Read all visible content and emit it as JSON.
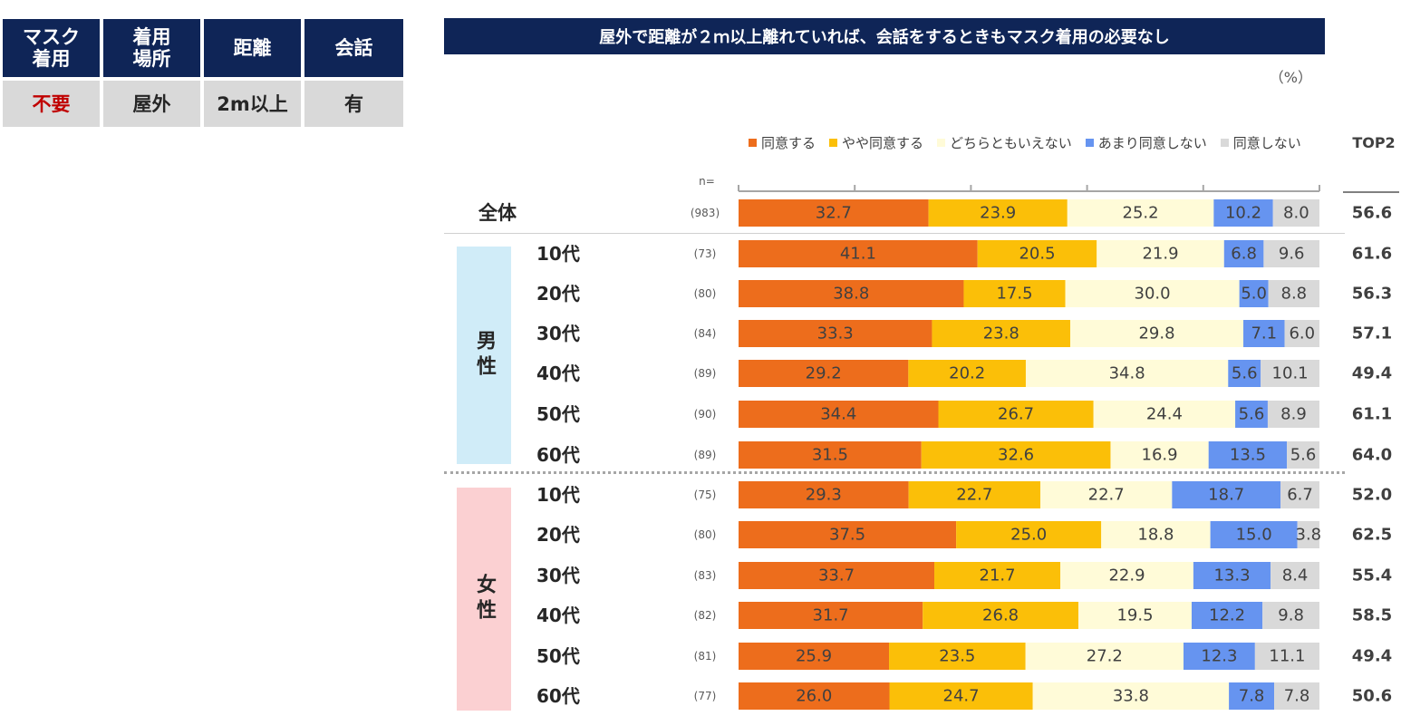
{
  "condition_table": {
    "headers": [
      "マスク\n着用",
      "着用\n場所",
      "距離",
      "会話"
    ],
    "values": [
      "不要",
      "屋外",
      "2m以上",
      "有"
    ]
  },
  "colors": {
    "navy": "#0f2557",
    "series": [
      "#ed6d1c",
      "#fbbf08",
      "#fffbd8",
      "#6694f0",
      "#d9d9d9"
    ]
  },
  "chart_data": {
    "type": "bar",
    "orientation": "horizontal-stacked-100",
    "title": "屋外で距離が２ｍ以上離れていれば、会話をするときもマスク着用の必要なし",
    "unit": "（%）",
    "n_label": "n=",
    "top2_label": "TOP2",
    "series": [
      {
        "name": "同意する",
        "values": [
          32.7,
          41.1,
          38.8,
          33.3,
          29.2,
          34.4,
          31.5,
          29.3,
          37.5,
          33.7,
          31.7,
          25.9,
          26.0
        ]
      },
      {
        "name": "やや同意する",
        "values": [
          23.9,
          20.5,
          17.5,
          23.8,
          20.2,
          26.7,
          32.6,
          22.7,
          25.0,
          21.7,
          26.8,
          23.5,
          24.7
        ]
      },
      {
        "name": "どちらともいえない",
        "values": [
          25.2,
          21.9,
          30.0,
          29.8,
          34.8,
          24.4,
          16.9,
          22.7,
          18.8,
          22.9,
          19.5,
          27.2,
          33.8
        ]
      },
      {
        "name": "あまり同意しない",
        "values": [
          10.2,
          6.8,
          5.0,
          7.1,
          5.6,
          5.6,
          13.5,
          18.7,
          15.0,
          13.3,
          12.2,
          12.3,
          7.8
        ]
      },
      {
        "name": "同意しない",
        "values": [
          8.0,
          9.6,
          8.8,
          6.0,
          10.1,
          8.9,
          5.6,
          6.7,
          3.8,
          8.4,
          9.8,
          11.1,
          7.8
        ]
      }
    ],
    "groups": [
      {
        "name": "男性",
        "rows": [
          1,
          2,
          3,
          4,
          5,
          6
        ]
      },
      {
        "name": "女性",
        "rows": [
          7,
          8,
          9,
          10,
          11,
          12
        ]
      }
    ],
    "rows": [
      {
        "label": "全体",
        "n": "(983)",
        "top2": "56.6"
      },
      {
        "label": "10代",
        "n": "(73)",
        "top2": "61.6"
      },
      {
        "label": "20代",
        "n": "(80)",
        "top2": "56.3"
      },
      {
        "label": "30代",
        "n": "(84)",
        "top2": "57.1"
      },
      {
        "label": "40代",
        "n": "(89)",
        "top2": "49.4"
      },
      {
        "label": "50代",
        "n": "(90)",
        "top2": "61.1"
      },
      {
        "label": "60代",
        "n": "(89)",
        "top2": "64.0"
      },
      {
        "label": "10代",
        "n": "(75)",
        "top2": "52.0"
      },
      {
        "label": "20代",
        "n": "(80)",
        "top2": "62.5"
      },
      {
        "label": "30代",
        "n": "(83)",
        "top2": "55.4"
      },
      {
        "label": "40代",
        "n": "(82)",
        "top2": "58.5"
      },
      {
        "label": "50代",
        "n": "(81)",
        "top2": "49.4"
      },
      {
        "label": "60代",
        "n": "(77)",
        "top2": "50.6"
      }
    ],
    "xlim": [
      0,
      100
    ]
  }
}
